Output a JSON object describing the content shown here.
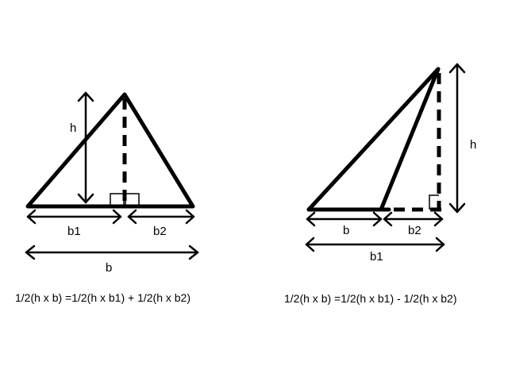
{
  "left_figure": {
    "height_label": "h",
    "base_part1_label": "b1",
    "base_part2_label": "b2",
    "base_total_label": "b",
    "formula": "1/2(h x b) =1/2(h x b1) + 1/2(h x b2)"
  },
  "right_figure": {
    "height_label": "h",
    "base_label": "b",
    "extension_label": "b2",
    "base_total_label": "b1",
    "formula": "1/2(h x b) =1/2(h x b1) - 1/2(h x b2)"
  }
}
